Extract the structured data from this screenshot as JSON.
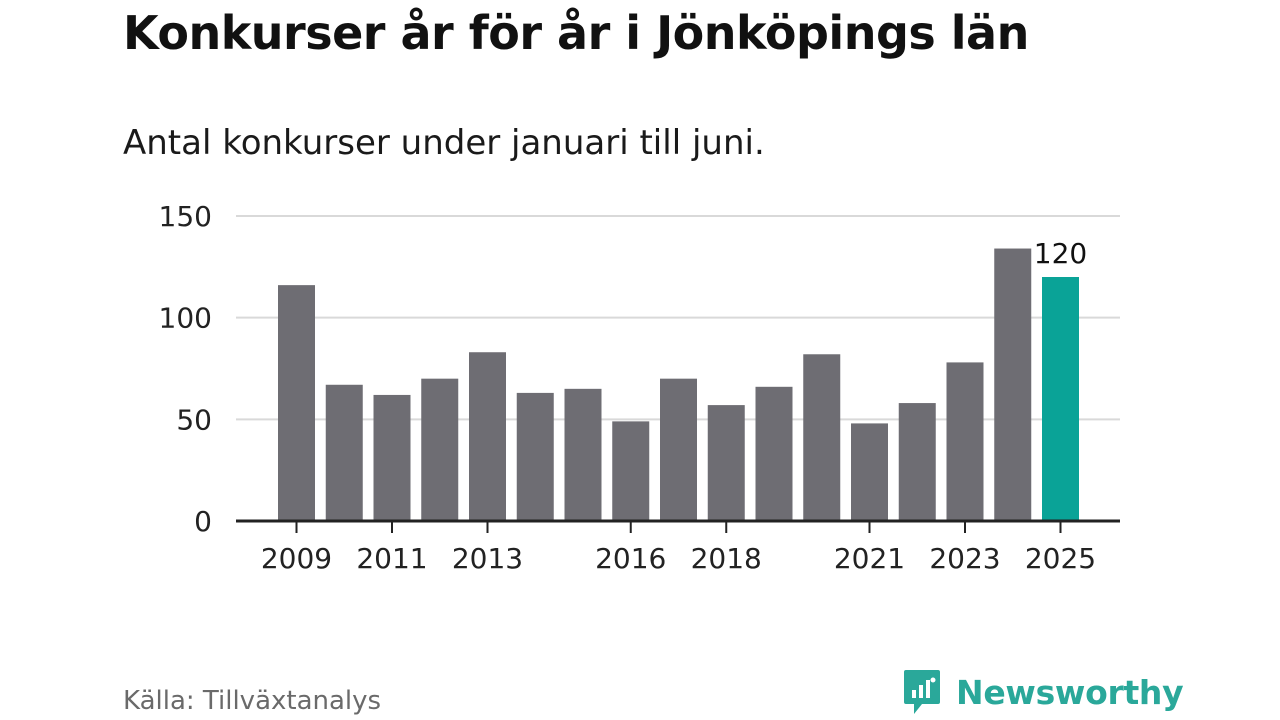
{
  "title": "Konkurser år för år i Jönköpings län",
  "subtitle": "Antal konkurser under januari till juni.",
  "source": "Källa: Tillväxtanalys",
  "brand": {
    "name": "Newsworthy",
    "icon": "newsworthy-logo-icon",
    "color": "#2aa89a"
  },
  "colors": {
    "bar": "#6e6d73",
    "highlight": "#0aa397",
    "grid": "#d9d9d9",
    "axis": "#222222"
  },
  "chart_data": {
    "type": "bar",
    "categories": [
      "2009",
      "2010",
      "2011",
      "2012",
      "2013",
      "2014",
      "2015",
      "2016",
      "2017",
      "2018",
      "2019",
      "2020",
      "2021",
      "2022",
      "2023",
      "2024",
      "2025"
    ],
    "values": [
      116,
      67,
      62,
      70,
      83,
      63,
      65,
      49,
      70,
      57,
      66,
      82,
      48,
      58,
      78,
      134,
      120
    ],
    "x_tick_labels": [
      "2009",
      "2011",
      "2013",
      "2016",
      "2018",
      "2021",
      "2023",
      "2025"
    ],
    "y_ticks": [
      "0",
      "50",
      "100",
      "150"
    ],
    "ylim": [
      0,
      150
    ],
    "highlight_category": "2025",
    "data_labels": [
      {
        "category": "2025",
        "label": "120"
      }
    ],
    "grid": true,
    "xlabel": "",
    "ylabel": ""
  }
}
